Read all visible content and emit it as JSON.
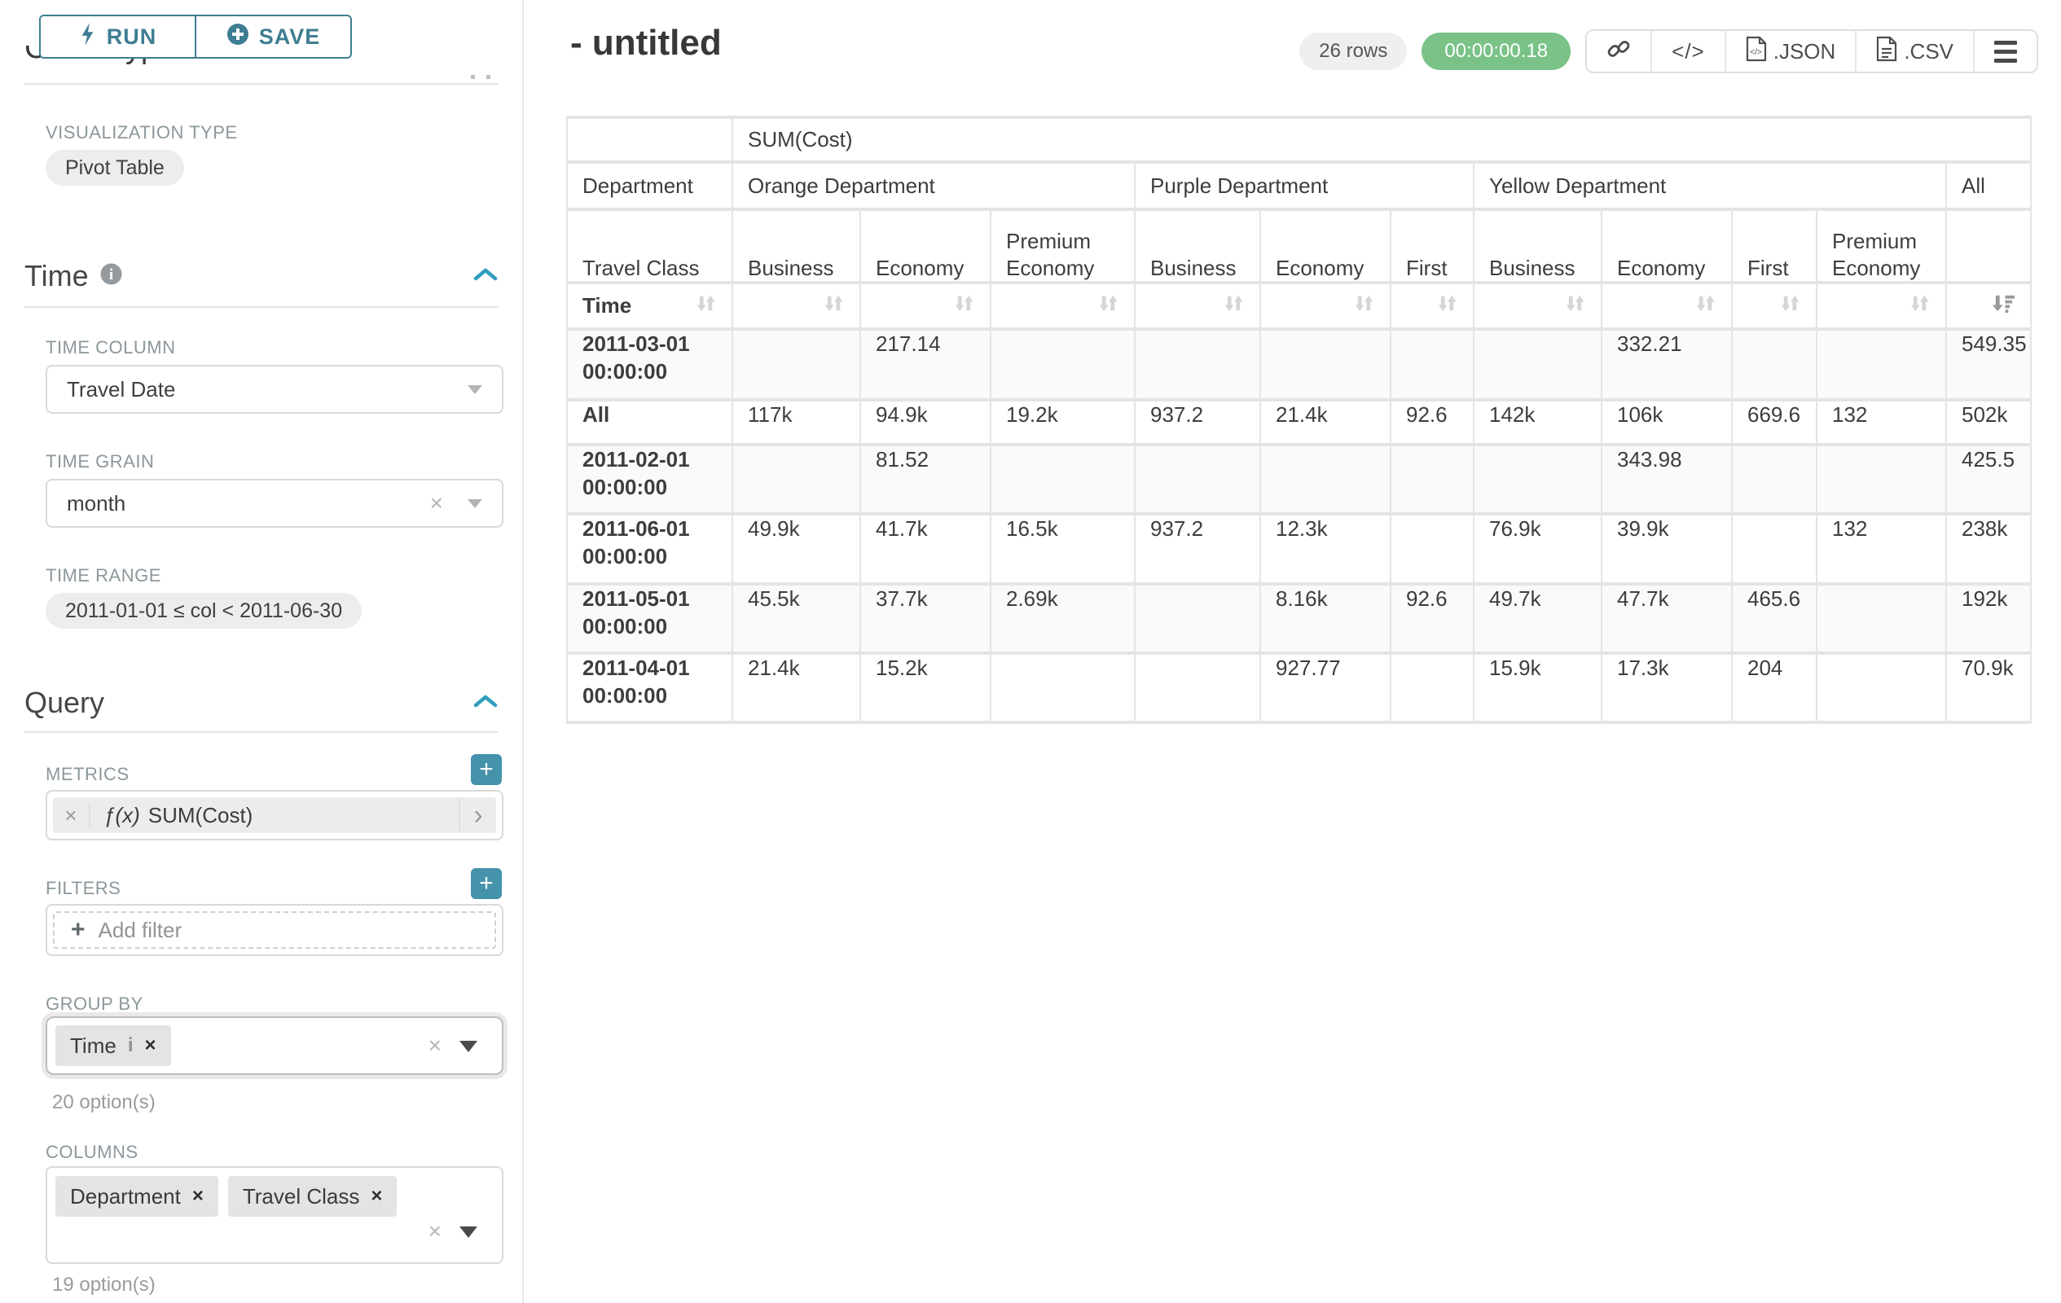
{
  "colors": {
    "accent_teal": "#3e7d92",
    "chevron_teal": "#2f9dbd",
    "plus_button_teal": "#4592ab",
    "timer_green": "#7ac287",
    "chip_gray": "#e4e4e4",
    "table_border": "#e4e4e4"
  },
  "sidebar": {
    "run_label": "RUN",
    "save_label": "SAVE",
    "chart_type_heading": "Chart Type",
    "visualization_type_label": "VISUALIZATION TYPE",
    "visualization_type_value": "Pivot Table",
    "time": {
      "title": "Time",
      "time_column_label": "TIME COLUMN",
      "time_column_value": "Travel Date",
      "time_grain_label": "TIME GRAIN",
      "time_grain_value": "month",
      "time_range_label": "TIME RANGE",
      "time_range_value": "2011-01-01 ≤ col < 2011-06-30"
    },
    "query": {
      "title": "Query",
      "metrics_label": "METRICS",
      "metric_fx": "ƒ(x)",
      "metric_value": "SUM(Cost)",
      "filters_label": "FILTERS",
      "add_filter_label": "Add filter",
      "group_by_label": "GROUP BY",
      "group_by_chips": [
        "Time"
      ],
      "group_by_hint": "20 option(s)",
      "columns_label": "COLUMNS",
      "column_chips": [
        "Department",
        "Travel Class"
      ],
      "columns_hint": "19 option(s)"
    }
  },
  "header": {
    "title": "- untitled",
    "row_count_badge": "26 rows",
    "timer_badge": "00:00:00.18",
    "code_icon_label": "</>",
    "export_json_label": ".JSON",
    "export_csv_label": ".CSV"
  },
  "pivot_table": {
    "metric_header": "SUM(Cost)",
    "row_header": "Department",
    "col_header": "Travel Class",
    "sort_row_label": "Time",
    "column_groups": [
      {
        "label": "Orange Department",
        "columns": [
          "Business",
          "Economy",
          "Premium Economy"
        ]
      },
      {
        "label": "Purple Department",
        "columns": [
          "Business",
          "Economy",
          "First"
        ]
      },
      {
        "label": "Yellow Department",
        "columns": [
          "Business",
          "Economy",
          "First",
          "Premium Economy"
        ]
      },
      {
        "label": "All",
        "columns": [
          ""
        ]
      }
    ],
    "rows": [
      {
        "label": "2011-03-01 00:00:00",
        "values": [
          "",
          "217.14",
          "",
          "",
          "",
          "",
          "",
          "332.21",
          "",
          "",
          "549.35"
        ]
      },
      {
        "label": "All",
        "values": [
          "117k",
          "94.9k",
          "19.2k",
          "937.2",
          "21.4k",
          "92.6",
          "142k",
          "106k",
          "669.6",
          "132",
          "502k"
        ]
      },
      {
        "label": "2011-02-01 00:00:00",
        "values": [
          "",
          "81.52",
          "",
          "",
          "",
          "",
          "",
          "343.98",
          "",
          "",
          "425.5"
        ]
      },
      {
        "label": "2011-06-01 00:00:00",
        "values": [
          "49.9k",
          "41.7k",
          "16.5k",
          "937.2",
          "12.3k",
          "",
          "76.9k",
          "39.9k",
          "",
          "132",
          "238k"
        ]
      },
      {
        "label": "2011-05-01 00:00:00",
        "values": [
          "45.5k",
          "37.7k",
          "2.69k",
          "",
          "8.16k",
          "92.6",
          "49.7k",
          "47.7k",
          "465.6",
          "",
          "192k"
        ]
      },
      {
        "label": "2011-04-01 00:00:00",
        "values": [
          "21.4k",
          "15.2k",
          "",
          "",
          "927.77",
          "",
          "15.9k",
          "17.3k",
          "204",
          "",
          "70.9k"
        ]
      }
    ]
  }
}
